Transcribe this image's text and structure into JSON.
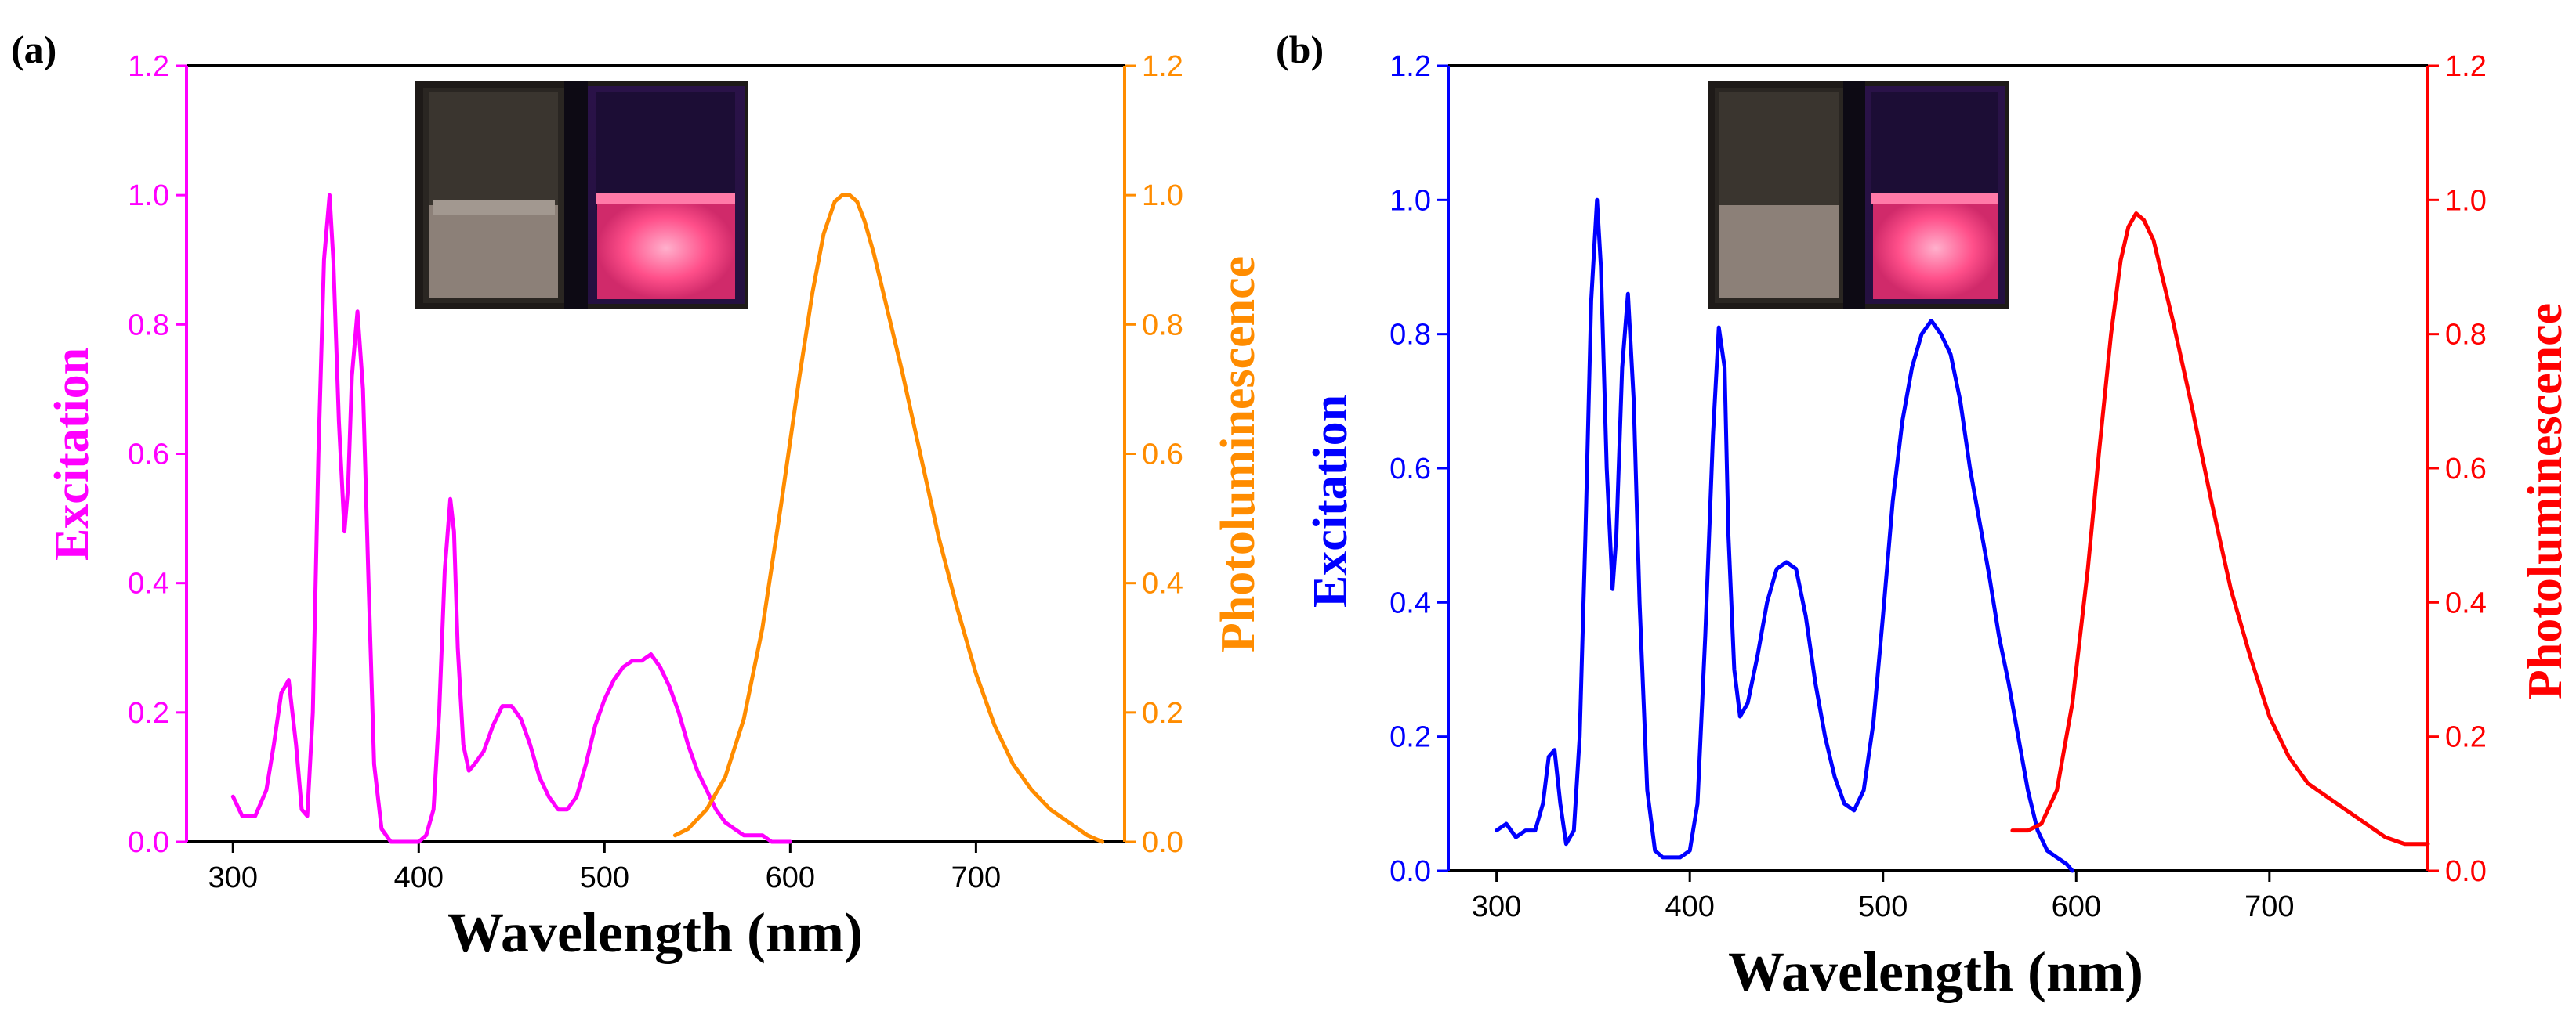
{
  "chart_data": [
    {
      "type": "line",
      "panel_label": "(a)",
      "xlabel": "Wavelength (nm)",
      "xlim": [
        275,
        780
      ],
      "xticks": [
        300,
        400,
        500,
        600,
        700
      ],
      "y_left": {
        "label": "Excitation",
        "color": "#ff00ff",
        "lim": [
          0,
          1.2
        ],
        "ticks": [
          0.0,
          0.2,
          0.4,
          0.6,
          0.8,
          1.0,
          1.2
        ]
      },
      "y_right": {
        "label": "Photoluminescence",
        "color": "#ff8c00",
        "lim": [
          0,
          1.2
        ],
        "ticks": [
          0.0,
          0.2,
          0.4,
          0.6,
          0.8,
          1.0,
          1.2
        ]
      },
      "inset": "photo of powder samples under ambient and UV light",
      "series": [
        {
          "name": "Excitation",
          "axis": "left",
          "color": "#ff00ff",
          "x": [
            300,
            305,
            312,
            318,
            322,
            326,
            330,
            334,
            337,
            340,
            343,
            346,
            349,
            352,
            354,
            357,
            360,
            362,
            364,
            367,
            370,
            373,
            376,
            380,
            385,
            390,
            395,
            400,
            404,
            408,
            411,
            414,
            417,
            419,
            421,
            424,
            427,
            430,
            435,
            440,
            445,
            450,
            455,
            460,
            465,
            470,
            475,
            480,
            485,
            490,
            495,
            500,
            505,
            510,
            515,
            520,
            525,
            530,
            535,
            540,
            545,
            550,
            555,
            560,
            565,
            570,
            575,
            580,
            585,
            590,
            595,
            600
          ],
          "y": [
            0.07,
            0.04,
            0.04,
            0.08,
            0.15,
            0.23,
            0.25,
            0.15,
            0.05,
            0.04,
            0.2,
            0.6,
            0.9,
            1.0,
            0.9,
            0.65,
            0.48,
            0.55,
            0.72,
            0.82,
            0.7,
            0.4,
            0.12,
            0.02,
            0.0,
            0.0,
            0.0,
            0.0,
            0.01,
            0.05,
            0.2,
            0.42,
            0.53,
            0.48,
            0.3,
            0.15,
            0.11,
            0.12,
            0.14,
            0.18,
            0.21,
            0.21,
            0.19,
            0.15,
            0.1,
            0.07,
            0.05,
            0.05,
            0.07,
            0.12,
            0.18,
            0.22,
            0.25,
            0.27,
            0.28,
            0.28,
            0.29,
            0.27,
            0.24,
            0.2,
            0.15,
            0.11,
            0.08,
            0.05,
            0.03,
            0.02,
            0.01,
            0.01,
            0.01,
            0.0,
            0.0,
            0.0
          ]
        },
        {
          "name": "Photoluminescence",
          "axis": "right",
          "color": "#ff8c00",
          "x": [
            538,
            545,
            555,
            565,
            575,
            585,
            595,
            605,
            612,
            618,
            624,
            628,
            632,
            636,
            640,
            645,
            650,
            660,
            670,
            680,
            690,
            700,
            710,
            720,
            730,
            740,
            750,
            760,
            768
          ],
          "y": [
            0.01,
            0.02,
            0.05,
            0.1,
            0.19,
            0.33,
            0.52,
            0.72,
            0.85,
            0.94,
            0.99,
            1.0,
            1.0,
            0.99,
            0.96,
            0.91,
            0.85,
            0.73,
            0.6,
            0.47,
            0.36,
            0.26,
            0.18,
            0.12,
            0.08,
            0.05,
            0.03,
            0.01,
            0.0
          ]
        }
      ]
    },
    {
      "type": "line",
      "panel_label": "(b)",
      "xlabel": "Wavelength (nm)",
      "xlim": [
        275,
        782
      ],
      "xticks": [
        300,
        400,
        500,
        600,
        700
      ],
      "y_left": {
        "label": "Excitation",
        "color": "#0000ff",
        "lim": [
          0,
          1.2
        ],
        "ticks": [
          0.0,
          0.2,
          0.4,
          0.6,
          0.8,
          1.0,
          1.2
        ]
      },
      "y_right": {
        "label": "Photoluminescence",
        "color": "#ff0000",
        "lim": [
          0,
          1.2
        ],
        "ticks": [
          0.0,
          0.2,
          0.4,
          0.6,
          0.8,
          1.0,
          1.2
        ]
      },
      "inset": "photo of powder samples under ambient and UV light",
      "series": [
        {
          "name": "Excitation",
          "axis": "left",
          "color": "#0000ff",
          "x": [
            300,
            305,
            310,
            315,
            320,
            324,
            327,
            330,
            333,
            336,
            340,
            343,
            346,
            349,
            352,
            354,
            357,
            360,
            362,
            365,
            368,
            371,
            374,
            378,
            382,
            386,
            390,
            395,
            400,
            404,
            408,
            412,
            415,
            418,
            420,
            423,
            426,
            430,
            435,
            440,
            445,
            450,
            455,
            460,
            465,
            470,
            475,
            480,
            485,
            490,
            495,
            500,
            505,
            510,
            515,
            520,
            525,
            530,
            535,
            540,
            545,
            550,
            555,
            560,
            565,
            570,
            575,
            580,
            585,
            590,
            595,
            598
          ],
          "y": [
            0.06,
            0.07,
            0.05,
            0.06,
            0.06,
            0.1,
            0.17,
            0.18,
            0.1,
            0.04,
            0.06,
            0.2,
            0.5,
            0.85,
            1.0,
            0.9,
            0.6,
            0.42,
            0.5,
            0.75,
            0.86,
            0.7,
            0.4,
            0.12,
            0.03,
            0.02,
            0.02,
            0.02,
            0.03,
            0.1,
            0.35,
            0.65,
            0.81,
            0.75,
            0.5,
            0.3,
            0.23,
            0.25,
            0.32,
            0.4,
            0.45,
            0.46,
            0.45,
            0.38,
            0.28,
            0.2,
            0.14,
            0.1,
            0.09,
            0.12,
            0.22,
            0.38,
            0.55,
            0.67,
            0.75,
            0.8,
            0.82,
            0.8,
            0.77,
            0.7,
            0.6,
            0.52,
            0.44,
            0.35,
            0.28,
            0.2,
            0.12,
            0.06,
            0.03,
            0.02,
            0.01,
            0.0
          ]
        },
        {
          "name": "Photoluminescence",
          "axis": "right",
          "color": "#ff0000",
          "x": [
            567,
            575,
            582,
            590,
            598,
            606,
            612,
            618,
            623,
            627,
            631,
            635,
            640,
            645,
            650,
            660,
            670,
            680,
            690,
            700,
            710,
            720,
            730,
            740,
            750,
            760,
            770,
            775,
            782
          ],
          "y": [
            0.06,
            0.06,
            0.07,
            0.12,
            0.25,
            0.45,
            0.63,
            0.8,
            0.91,
            0.96,
            0.98,
            0.97,
            0.94,
            0.88,
            0.82,
            0.69,
            0.55,
            0.42,
            0.32,
            0.23,
            0.17,
            0.13,
            0.11,
            0.09,
            0.07,
            0.05,
            0.04,
            0.04,
            0.04
          ]
        }
      ]
    }
  ]
}
